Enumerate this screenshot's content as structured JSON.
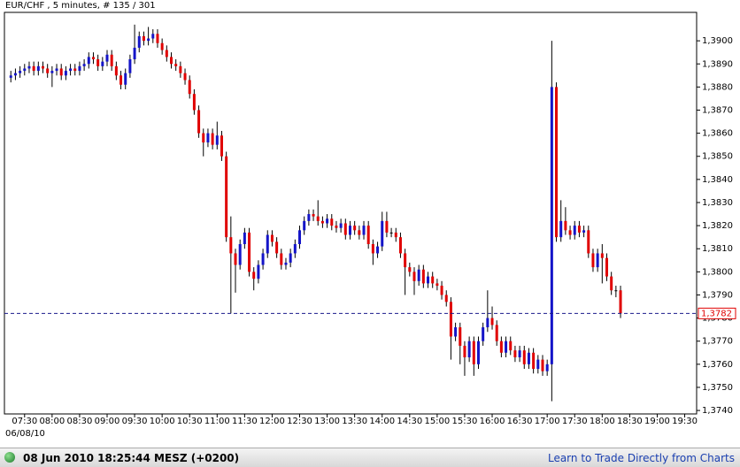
{
  "chart_data": {
    "type": "candlestick",
    "title": "EUR/CHF , 5 minutes, # 135 / 301",
    "date_label": "06/08/10",
    "up_color": "#1414c8",
    "down_color": "#e00000",
    "grid": false,
    "x": [
      "07:15",
      "07:20",
      "07:25",
      "07:30",
      "07:35",
      "07:40",
      "07:45",
      "07:50",
      "07:55",
      "08:00",
      "08:05",
      "08:10",
      "08:15",
      "08:20",
      "08:25",
      "08:30",
      "08:35",
      "08:40",
      "08:45",
      "08:50",
      "08:55",
      "09:00",
      "09:05",
      "09:10",
      "09:15",
      "09:20",
      "09:25",
      "09:30",
      "09:35",
      "09:40",
      "09:45",
      "09:50",
      "09:55",
      "10:00",
      "10:05",
      "10:10",
      "10:15",
      "10:20",
      "10:25",
      "10:30",
      "10:35",
      "10:40",
      "10:45",
      "10:50",
      "10:55",
      "11:00",
      "11:05",
      "11:10",
      "11:15",
      "11:20",
      "11:25",
      "11:30",
      "11:35",
      "11:40",
      "11:45",
      "11:50",
      "11:55",
      "12:00",
      "12:05",
      "12:10",
      "12:15",
      "12:20",
      "12:25",
      "12:30",
      "12:35",
      "12:40",
      "12:45",
      "12:50",
      "12:55",
      "13:00",
      "13:05",
      "13:10",
      "13:15",
      "13:20",
      "13:25",
      "13:30",
      "13:35",
      "13:40",
      "13:45",
      "13:50",
      "13:55",
      "14:00",
      "14:05",
      "14:10",
      "14:15",
      "14:20",
      "14:25",
      "14:30",
      "14:35",
      "14:40",
      "14:45",
      "14:50",
      "14:55",
      "15:00",
      "15:05",
      "15:10",
      "15:15",
      "15:20",
      "15:25",
      "15:30",
      "15:35",
      "15:40",
      "15:45",
      "15:50",
      "15:55",
      "16:00",
      "16:05",
      "16:10",
      "16:15",
      "16:20",
      "16:25",
      "16:30",
      "16:35",
      "16:40",
      "16:45",
      "16:50",
      "16:55",
      "17:00",
      "17:05",
      "17:10",
      "17:15",
      "17:20",
      "17:25",
      "17:30",
      "17:35",
      "17:40",
      "17:45",
      "17:50",
      "17:55",
      "18:00",
      "18:05",
      "18:10",
      "18:15",
      "18:20"
    ],
    "open": [
      1.3884,
      1.3885,
      1.3886,
      1.3887,
      1.3888,
      1.3889,
      1.3887,
      1.3889,
      1.3888,
      1.3886,
      1.3887,
      1.3888,
      1.3885,
      1.3887,
      1.3888,
      1.3887,
      1.3889,
      1.389,
      1.3893,
      1.3892,
      1.3889,
      1.3891,
      1.3894,
      1.3889,
      1.3885,
      1.3881,
      1.3886,
      1.3892,
      1.3897,
      1.3902,
      1.39,
      1.3901,
      1.3903,
      1.3899,
      1.3896,
      1.3893,
      1.389,
      1.3889,
      1.3886,
      1.3883,
      1.3877,
      1.387,
      1.386,
      1.3856,
      1.386,
      1.3855,
      1.3859,
      1.385,
      1.3815,
      1.3808,
      1.3803,
      1.3812,
      1.3817,
      1.38,
      1.3797,
      1.3803,
      1.3808,
      1.3816,
      1.3813,
      1.3808,
      1.3803,
      1.3804,
      1.3808,
      1.3812,
      1.3818,
      1.3822,
      1.3825,
      1.3824,
      1.3822,
      1.3821,
      1.3823,
      1.382,
      1.3819,
      1.3821,
      1.3816,
      1.382,
      1.3818,
      1.3816,
      1.382,
      1.3812,
      1.3808,
      1.3811,
      1.3822,
      1.3817,
      1.3817,
      1.3815,
      1.3808,
      1.3802,
      1.38,
      1.3796,
      1.3801,
      1.3795,
      1.3798,
      1.3795,
      1.3794,
      1.379,
      1.3787,
      1.3772,
      1.3776,
      1.3768,
      1.3763,
      1.377,
      1.376,
      1.377,
      1.3776,
      1.378,
      1.3777,
      1.377,
      1.3765,
      1.377,
      1.3766,
      1.3763,
      1.3766,
      1.376,
      1.3765,
      1.3758,
      1.3762,
      1.3757,
      1.376,
      1.388,
      1.3815,
      1.3822,
      1.3818,
      1.3816,
      1.382,
      1.3817,
      1.3818,
      1.3808,
      1.3802,
      1.3808,
      1.3806,
      1.3798,
      1.3792,
      1.3792
    ],
    "high": [
      1.3887,
      1.3888,
      1.3889,
      1.389,
      1.3891,
      1.3891,
      1.3891,
      1.3891,
      1.389,
      1.3889,
      1.389,
      1.389,
      1.3889,
      1.389,
      1.389,
      1.3891,
      1.3892,
      1.3895,
      1.3895,
      1.3894,
      1.3893,
      1.3896,
      1.3896,
      1.3891,
      1.3887,
      1.3888,
      1.3894,
      1.3907,
      1.3904,
      1.3904,
      1.3906,
      1.3905,
      1.3905,
      1.3901,
      1.3898,
      1.3895,
      1.3892,
      1.3891,
      1.3888,
      1.3885,
      1.3879,
      1.3872,
      1.3862,
      1.3862,
      1.3862,
      1.3865,
      1.3861,
      1.3852,
      1.3824,
      1.381,
      1.3814,
      1.3819,
      1.3819,
      1.3802,
      1.3805,
      1.381,
      1.3818,
      1.3818,
      1.3815,
      1.381,
      1.3806,
      1.381,
      1.3814,
      1.382,
      1.3824,
      1.3827,
      1.3827,
      1.3831,
      1.3824,
      1.3825,
      1.3825,
      1.3822,
      1.3823,
      1.3823,
      1.3822,
      1.3822,
      1.382,
      1.3822,
      1.3822,
      1.3814,
      1.3813,
      1.3826,
      1.3826,
      1.3819,
      1.3819,
      1.3817,
      1.381,
      1.3804,
      1.3802,
      1.3803,
      1.3803,
      1.38,
      1.38,
      1.3797,
      1.3796,
      1.3792,
      1.3789,
      1.3778,
      1.3778,
      1.377,
      1.3772,
      1.3772,
      1.3772,
      1.3778,
      1.3792,
      1.3785,
      1.3779,
      1.3772,
      1.3772,
      1.3772,
      1.3768,
      1.3768,
      1.3768,
      1.3767,
      1.3767,
      1.3764,
      1.3764,
      1.3762,
      1.39,
      1.3882,
      1.3831,
      1.3828,
      1.382,
      1.3822,
      1.3822,
      1.382,
      1.382,
      1.381,
      1.381,
      1.3812,
      1.3808,
      1.38,
      1.3794,
      1.3794
    ],
    "low": [
      1.3882,
      1.3883,
      1.3884,
      1.3885,
      1.3886,
      1.3885,
      1.3885,
      1.3886,
      1.3884,
      1.388,
      1.3885,
      1.3883,
      1.3883,
      1.3885,
      1.3885,
      1.3885,
      1.3887,
      1.3888,
      1.389,
      1.3887,
      1.3887,
      1.3889,
      1.3887,
      1.3883,
      1.3879,
      1.3879,
      1.3884,
      1.389,
      1.3895,
      1.3898,
      1.3898,
      1.3899,
      1.3897,
      1.3894,
      1.3891,
      1.3888,
      1.3887,
      1.3884,
      1.3881,
      1.3875,
      1.3868,
      1.3858,
      1.385,
      1.3854,
      1.3853,
      1.3853,
      1.3848,
      1.3813,
      1.3782,
      1.3791,
      1.3801,
      1.381,
      1.3798,
      1.3792,
      1.3795,
      1.3801,
      1.3806,
      1.3811,
      1.3806,
      1.3801,
      1.3801,
      1.3802,
      1.3806,
      1.381,
      1.3816,
      1.382,
      1.3822,
      1.382,
      1.3819,
      1.3819,
      1.3818,
      1.3817,
      1.3817,
      1.3814,
      1.3814,
      1.3816,
      1.3814,
      1.3814,
      1.381,
      1.3803,
      1.3806,
      1.3809,
      1.3815,
      1.3815,
      1.3813,
      1.3806,
      1.379,
      1.3798,
      1.379,
      1.3794,
      1.3793,
      1.3793,
      1.3793,
      1.3792,
      1.3788,
      1.3785,
      1.3762,
      1.377,
      1.376,
      1.3755,
      1.3761,
      1.3755,
      1.3758,
      1.3768,
      1.3774,
      1.3775,
      1.3768,
      1.3763,
      1.3763,
      1.3764,
      1.3761,
      1.3761,
      1.3758,
      1.3758,
      1.3756,
      1.3756,
      1.3755,
      1.3755,
      1.3744,
      1.3813,
      1.3813,
      1.3816,
      1.3814,
      1.3814,
      1.3815,
      1.3815,
      1.3806,
      1.38,
      1.38,
      1.3795,
      1.3796,
      1.379,
      1.3789,
      1.378
    ],
    "close": [
      1.3885,
      1.3886,
      1.3887,
      1.3888,
      1.3889,
      1.3887,
      1.3889,
      1.3888,
      1.3886,
      1.3887,
      1.3888,
      1.3885,
      1.3887,
      1.3888,
      1.3887,
      1.3889,
      1.389,
      1.3893,
      1.3892,
      1.3889,
      1.3891,
      1.3894,
      1.3889,
      1.3885,
      1.3881,
      1.3886,
      1.3892,
      1.3897,
      1.3902,
      1.39,
      1.3901,
      1.3903,
      1.3899,
      1.3896,
      1.3893,
      1.389,
      1.3889,
      1.3886,
      1.3883,
      1.3877,
      1.387,
      1.386,
      1.3856,
      1.386,
      1.3855,
      1.3859,
      1.385,
      1.3815,
      1.3808,
      1.3803,
      1.3812,
      1.3817,
      1.38,
      1.3797,
      1.3803,
      1.3808,
      1.3816,
      1.3813,
      1.3808,
      1.3803,
      1.3804,
      1.3808,
      1.3812,
      1.3818,
      1.3822,
      1.3825,
      1.3824,
      1.3822,
      1.3821,
      1.3823,
      1.382,
      1.3819,
      1.3821,
      1.3816,
      1.382,
      1.3818,
      1.3816,
      1.382,
      1.3812,
      1.3808,
      1.3811,
      1.3822,
      1.3817,
      1.3817,
      1.3815,
      1.3808,
      1.3802,
      1.38,
      1.3796,
      1.3801,
      1.3795,
      1.3798,
      1.3795,
      1.3794,
      1.379,
      1.3787,
      1.3772,
      1.3776,
      1.3768,
      1.3763,
      1.377,
      1.376,
      1.377,
      1.3776,
      1.378,
      1.3777,
      1.377,
      1.3765,
      1.377,
      1.3766,
      1.3763,
      1.3766,
      1.376,
      1.3765,
      1.3758,
      1.3762,
      1.3757,
      1.376,
      1.388,
      1.3815,
      1.3822,
      1.3818,
      1.3816,
      1.382,
      1.3817,
      1.3818,
      1.3808,
      1.3802,
      1.3808,
      1.3806,
      1.3798,
      1.3792,
      1.3792,
      1.3782
    ],
    "last_price": {
      "value": 1.3782,
      "label": "1,3782"
    },
    "xlim": [
      "07:08",
      "19:43"
    ],
    "xticks": [
      "07:30",
      "08:00",
      "08:30",
      "09:00",
      "09:30",
      "10:00",
      "10:30",
      "11:00",
      "11:30",
      "12:00",
      "12:30",
      "13:00",
      "13:30",
      "14:00",
      "14:30",
      "15:00",
      "15:30",
      "16:00",
      "16:30",
      "17:00",
      "17:30",
      "18:00",
      "18:30",
      "19:00",
      "19:30"
    ],
    "ylim": [
      1.37385,
      1.39123
    ],
    "yticks": [
      {
        "value": 1.374,
        "label": "1,3740"
      },
      {
        "value": 1.375,
        "label": "1,3750"
      },
      {
        "value": 1.376,
        "label": "1,3760"
      },
      {
        "value": 1.377,
        "label": "1,3770"
      },
      {
        "value": 1.378,
        "label": "1,3780"
      },
      {
        "value": 1.379,
        "label": "1,3790"
      },
      {
        "value": 1.38,
        "label": "1,3800"
      },
      {
        "value": 1.381,
        "label": "1,3810"
      },
      {
        "value": 1.382,
        "label": "1,3820"
      },
      {
        "value": 1.383,
        "label": "1,3830"
      },
      {
        "value": 1.384,
        "label": "1,3840"
      },
      {
        "value": 1.385,
        "label": "1,3850"
      },
      {
        "value": 1.386,
        "label": "1,3860"
      },
      {
        "value": 1.387,
        "label": "1,3870"
      },
      {
        "value": 1.388,
        "label": "1,3880"
      },
      {
        "value": 1.389,
        "label": "1,3890"
      },
      {
        "value": 1.39,
        "label": "1,3900"
      }
    ]
  },
  "status_bar": {
    "datetime": "08 Jun 2010 18:25:44  MESZ (+0200)",
    "link": "Learn to Trade Directly from Charts"
  }
}
